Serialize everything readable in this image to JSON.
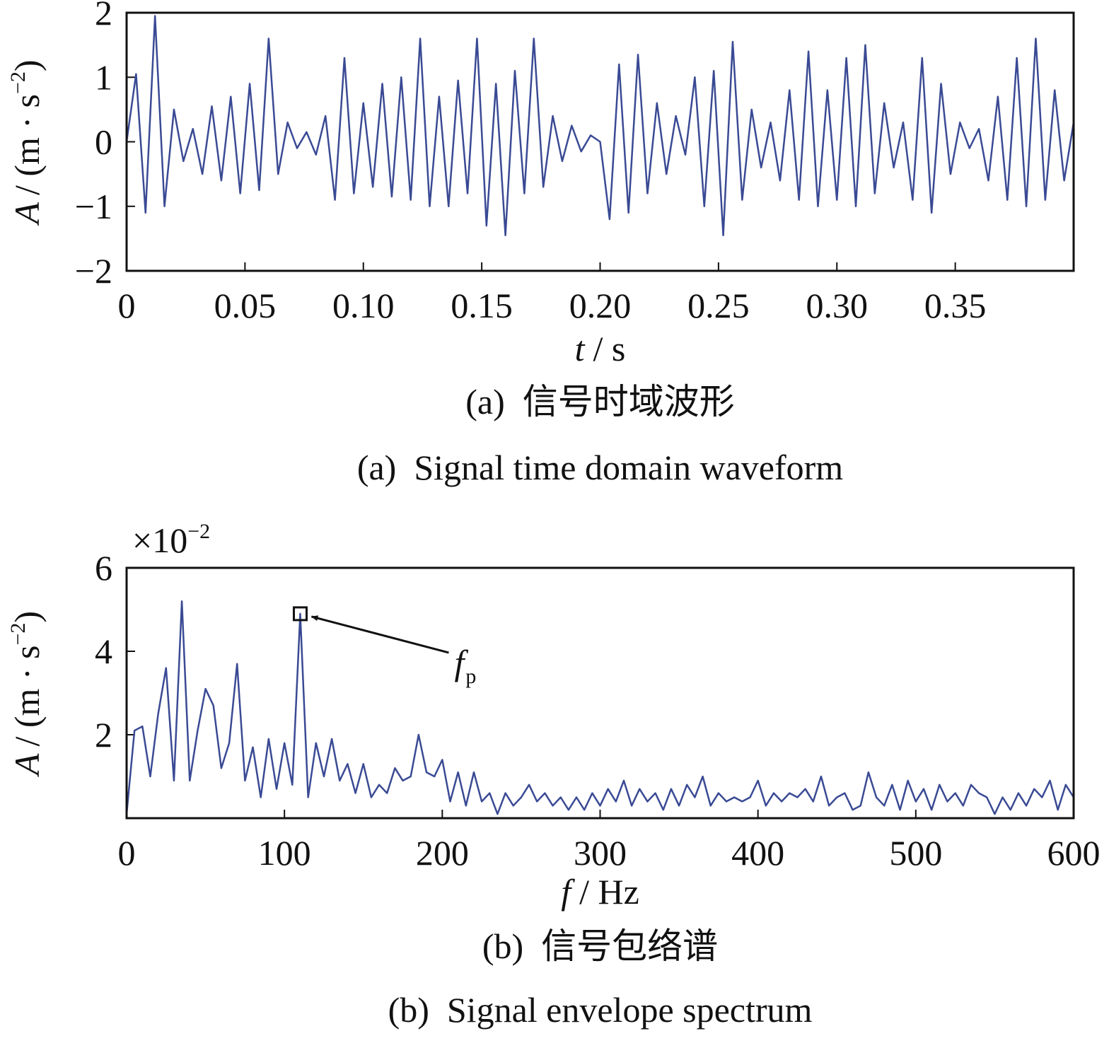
{
  "chart_data": [
    {
      "type": "line",
      "xlabel": {
        "var": "t",
        "unit": "/ s"
      },
      "ylabel": {
        "var": "A",
        "unit": "/ (m · s",
        "exp": "−2",
        "close": ")"
      },
      "captions": [
        "(a)  信号时域波形",
        "(a)  Signal time domain waveform"
      ],
      "xlim": [
        0,
        0.4
      ],
      "ylim": [
        -2,
        2
      ],
      "xticks": [
        0,
        0.05,
        {
          "value": 0.1,
          "label": "0.10"
        },
        0.15,
        {
          "value": 0.2,
          "label": "0.20"
        },
        0.25,
        {
          "value": 0.3,
          "label": "0.30"
        },
        0.35
      ],
      "yticks": [
        {
          "value": -2,
          "label": "−2"
        },
        {
          "value": -1,
          "label": "−1"
        },
        0,
        1,
        2
      ],
      "grid": false,
      "x": [
        0,
        0.004,
        0.008,
        0.012,
        0.016,
        0.02,
        0.024,
        0.028,
        0.032,
        0.036,
        0.04,
        0.044,
        0.048,
        0.052,
        0.056,
        0.06,
        0.064,
        0.068,
        0.072,
        0.076,
        0.08,
        0.084,
        0.088,
        0.092,
        0.096,
        0.1,
        0.104,
        0.108,
        0.112,
        0.116,
        0.12,
        0.124,
        0.128,
        0.132,
        0.136,
        0.14,
        0.144,
        0.148,
        0.152,
        0.156,
        0.16,
        0.164,
        0.168,
        0.172,
        0.176,
        0.18,
        0.184,
        0.188,
        0.192,
        0.196,
        0.2,
        0.204,
        0.208,
        0.212,
        0.216,
        0.22,
        0.224,
        0.228,
        0.232,
        0.236,
        0.24,
        0.244,
        0.248,
        0.252,
        0.256,
        0.26,
        0.264,
        0.268,
        0.272,
        0.276,
        0.28,
        0.284,
        0.288,
        0.292,
        0.296,
        0.3,
        0.304,
        0.308,
        0.312,
        0.316,
        0.32,
        0.324,
        0.328,
        0.332,
        0.336,
        0.34,
        0.344,
        0.348,
        0.352,
        0.356,
        0.36,
        0.364,
        0.368,
        0.372,
        0.376,
        0.38,
        0.384,
        0.388,
        0.392,
        0.396,
        0.4
      ],
      "series": [
        {
          "color": "#3a4a94",
          "values": [
            0,
            1.05,
            -1.1,
            1.95,
            -1.0,
            0.5,
            -0.3,
            0.2,
            -0.5,
            0.55,
            -0.6,
            0.7,
            -0.8,
            0.9,
            -0.75,
            1.6,
            -0.5,
            0.3,
            -0.1,
            0.15,
            -0.2,
            0.4,
            -0.9,
            1.3,
            -0.8,
            0.6,
            -0.7,
            0.9,
            -0.85,
            1.0,
            -0.9,
            1.6,
            -1.0,
            0.7,
            -1.0,
            0.95,
            -0.8,
            1.6,
            -1.3,
            0.9,
            -1.45,
            1.1,
            -0.8,
            1.6,
            -0.7,
            0.4,
            -0.3,
            0.25,
            -0.15,
            0.1,
            0,
            -1.2,
            1.2,
            -1.1,
            1.35,
            -0.8,
            0.6,
            -0.5,
            0.4,
            -0.2,
            1.0,
            -1.0,
            1.1,
            -1.45,
            1.55,
            -0.9,
            0.5,
            -0.4,
            0.3,
            -0.6,
            0.8,
            -0.9,
            1.4,
            -1.0,
            0.8,
            -0.9,
            1.3,
            -1.0,
            1.5,
            -0.8,
            0.6,
            -0.4,
            0.3,
            -0.9,
            1.3,
            -1.1,
            0.9,
            -0.5,
            0.3,
            -0.1,
            0.2,
            -0.6,
            0.7,
            -0.9,
            1.3,
            -1.0,
            1.6,
            -0.9,
            0.8,
            -0.6,
            0.3
          ]
        }
      ]
    },
    {
      "type": "line",
      "xlabel": {
        "var": "f",
        "unit": "/ Hz"
      },
      "ylabel": {
        "var": "A",
        "unit": "/ (m · s",
        "exp": "−2",
        "close": ")"
      },
      "y_scale": {
        "base": "×10",
        "exp": "−2"
      },
      "captions": [
        "(b)  信号包络谱",
        "(b)  Signal envelope spectrum"
      ],
      "xlim": [
        0,
        600
      ],
      "ylim": [
        0,
        6
      ],
      "xticks": [
        0,
        100,
        200,
        300,
        400,
        500,
        600
      ],
      "yticks": [
        2,
        4,
        6
      ],
      "grid": false,
      "x": [
        0,
        5,
        10,
        15,
        20,
        25,
        30,
        35,
        40,
        45,
        50,
        55,
        60,
        65,
        70,
        75,
        80,
        85,
        90,
        95,
        100,
        105,
        110,
        115,
        120,
        125,
        130,
        135,
        140,
        145,
        150,
        155,
        160,
        165,
        170,
        175,
        180,
        185,
        190,
        195,
        200,
        205,
        210,
        215,
        220,
        225,
        230,
        235,
        240,
        245,
        250,
        255,
        260,
        265,
        270,
        275,
        280,
        285,
        290,
        295,
        300,
        305,
        310,
        315,
        320,
        325,
        330,
        335,
        340,
        345,
        350,
        355,
        360,
        365,
        370,
        375,
        380,
        385,
        390,
        395,
        400,
        405,
        410,
        415,
        420,
        425,
        430,
        435,
        440,
        445,
        450,
        455,
        460,
        465,
        470,
        475,
        480,
        485,
        490,
        495,
        500,
        505,
        510,
        515,
        520,
        525,
        530,
        535,
        540,
        545,
        550,
        555,
        560,
        565,
        570,
        575,
        580,
        585,
        590,
        595,
        600
      ],
      "series": [
        {
          "color": "#3a4a94",
          "values": [
            0.1,
            2.1,
            2.2,
            1.0,
            2.5,
            3.6,
            0.9,
            5.2,
            0.9,
            2.1,
            3.1,
            2.7,
            1.2,
            1.8,
            3.7,
            0.9,
            1.7,
            0.5,
            1.9,
            0.7,
            1.8,
            0.8,
            4.9,
            0.5,
            1.8,
            1.0,
            1.9,
            0.9,
            1.3,
            0.6,
            1.3,
            0.5,
            0.8,
            0.6,
            1.2,
            0.9,
            1.0,
            2.0,
            1.1,
            1.0,
            1.4,
            0.4,
            1.1,
            0.3,
            1.1,
            0.4,
            0.6,
            0.1,
            0.6,
            0.3,
            0.5,
            0.8,
            0.4,
            0.6,
            0.3,
            0.5,
            0.2,
            0.5,
            0.2,
            0.6,
            0.3,
            0.7,
            0.4,
            0.9,
            0.3,
            0.7,
            0.4,
            0.6,
            0.2,
            0.7,
            0.3,
            0.8,
            0.5,
            1.0,
            0.3,
            0.6,
            0.4,
            0.5,
            0.4,
            0.5,
            0.9,
            0.3,
            0.6,
            0.4,
            0.6,
            0.5,
            0.7,
            0.4,
            1.0,
            0.3,
            0.5,
            0.6,
            0.2,
            0.3,
            1.1,
            0.5,
            0.3,
            0.8,
            0.2,
            0.9,
            0.4,
            0.7,
            0.2,
            0.8,
            0.4,
            0.6,
            0.3,
            0.8,
            0.6,
            0.5,
            0.1,
            0.5,
            0.2,
            0.6,
            0.3,
            0.7,
            0.5,
            0.9,
            0.2,
            0.8,
            0.5
          ]
        }
      ],
      "highlight": {
        "x": 110,
        "y": 4.9
      },
      "annotation": {
        "text": "f",
        "sub": "p"
      }
    }
  ]
}
